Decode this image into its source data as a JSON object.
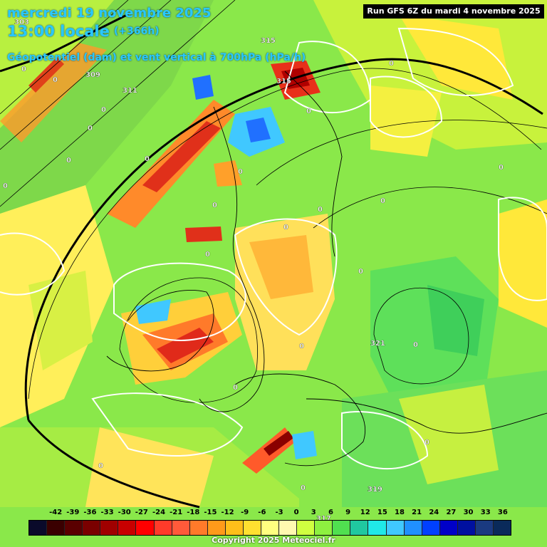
{
  "header": {
    "date": "mercredi 19 novembre 2025",
    "time": "13:00 locale",
    "lead": "(+366h)",
    "parameter": "Géopotentiel (dam) et vent vertical à 700hPa (hPa/h)",
    "run": "Run GFS 6Z du mardi 4 novembre 2025"
  },
  "map": {
    "geopotential_labels": [
      "303",
      "309",
      "311",
      "315",
      "315",
      "321",
      "319",
      "317"
    ],
    "vertical_wind_zero_labels": [
      "0",
      "0",
      "0",
      "0",
      "0",
      "0",
      "0",
      "0",
      "0",
      "0",
      "0",
      "0",
      "0",
      "0",
      "0",
      "0",
      "0",
      "0",
      "0",
      "0",
      "0",
      "0",
      "0"
    ]
  },
  "legend": {
    "values": [
      "-42",
      "-39",
      "-36",
      "-33",
      "-30",
      "-27",
      "-24",
      "-21",
      "-18",
      "-15",
      "-12",
      "-9",
      "-6",
      "-3",
      "0",
      "3",
      "6",
      "9",
      "12",
      "15",
      "18",
      "21",
      "24",
      "27",
      "30",
      "33",
      "36"
    ],
    "colors": [
      "#0a0a2a",
      "#3a0000",
      "#5a0000",
      "#7a0000",
      "#a00000",
      "#c80000",
      "#ff0000",
      "#ff3b2a",
      "#ff5a3a",
      "#ff7a2a",
      "#ff9a1a",
      "#ffbf1a",
      "#ffe030",
      "#ffff80",
      "#fff8b0",
      "#d0ff40",
      "#8ef040",
      "#50e050",
      "#20c8a0",
      "#20e8e8",
      "#40c8ff",
      "#2090ff",
      "#0040ff",
      "#0000c8",
      "#0010a0",
      "#1a3a80",
      "#0a2a5a"
    ]
  },
  "copyright": "Copyright 2025 Meteociel.fr"
}
